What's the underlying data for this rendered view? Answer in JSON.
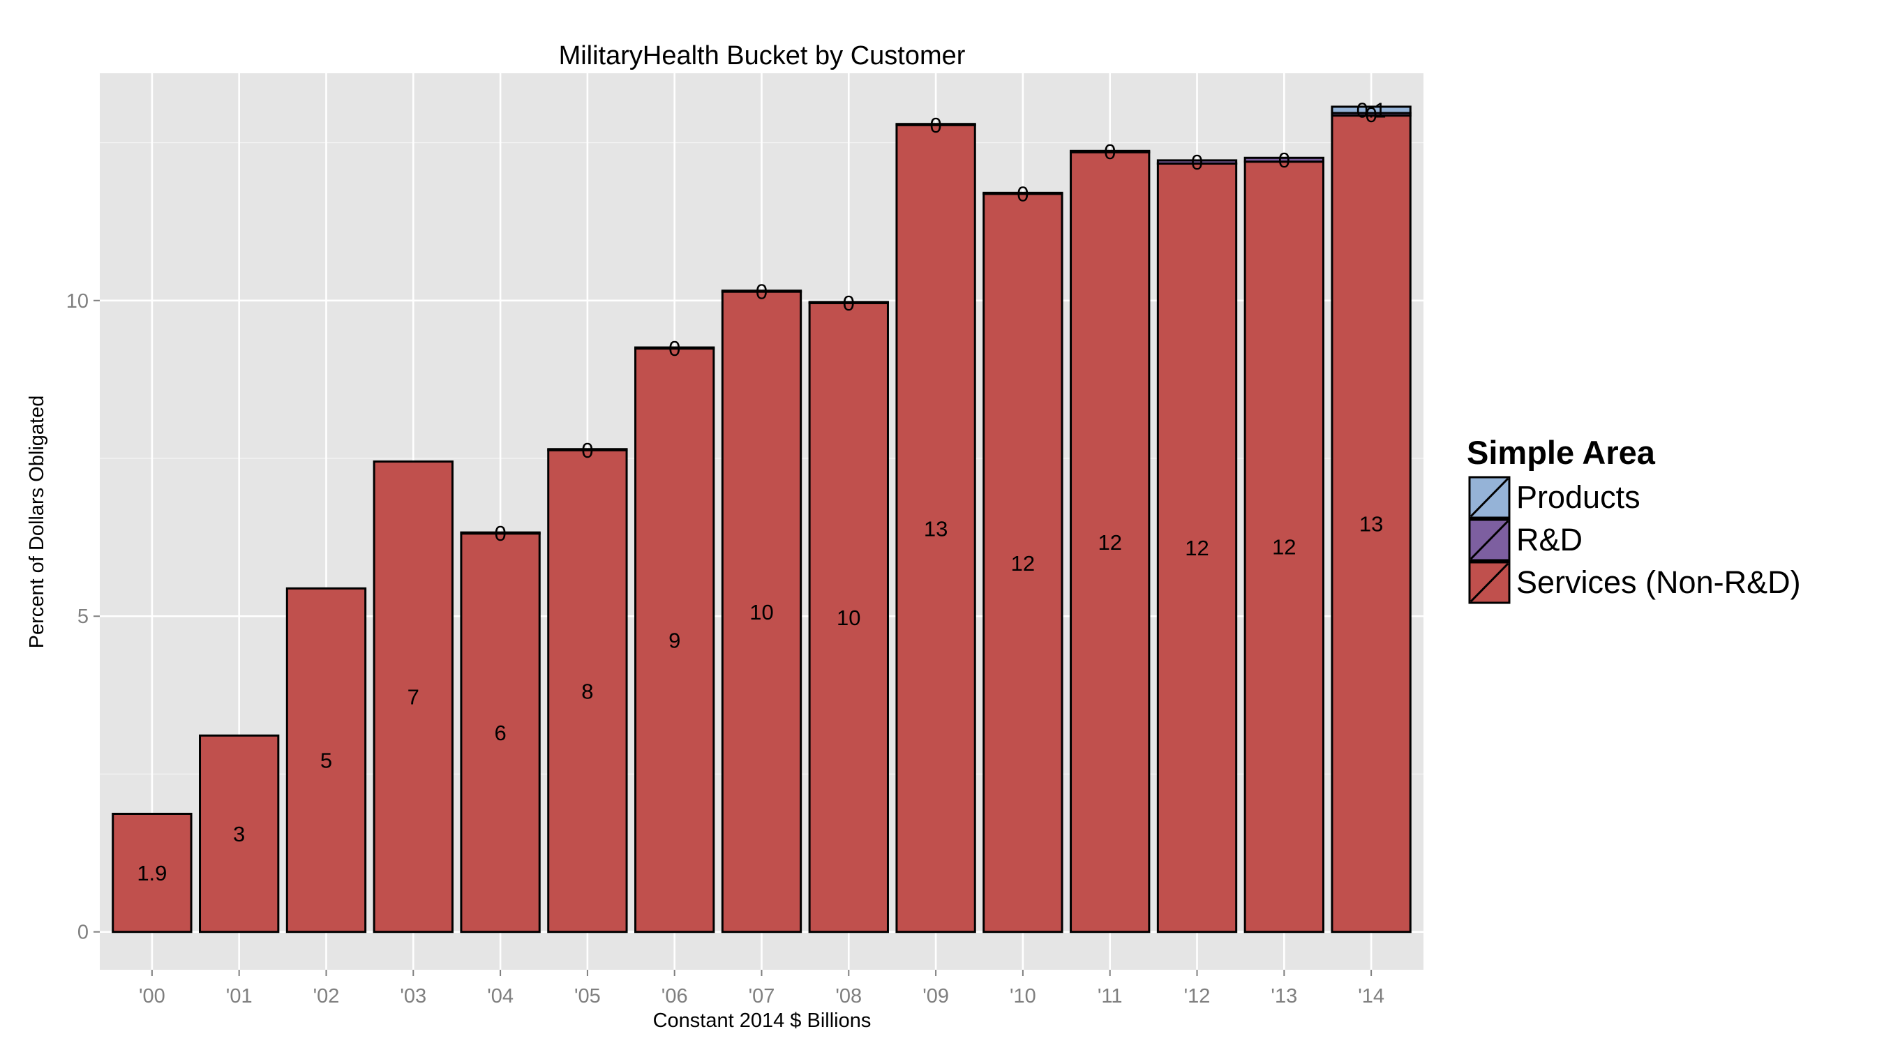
{
  "chart_data": {
    "type": "bar",
    "stacked": true,
    "title": "MilitaryHealth Bucket by Customer",
    "xlabel": "Constant 2014 $ Billions",
    "ylabel": "Percent of Dollars Obligated",
    "ylim": [
      -0.6,
      13.6
    ],
    "yticks": [
      0,
      5,
      10
    ],
    "grid": true,
    "legend_position": "right",
    "legend_title": "Simple Area",
    "categories": [
      "'00",
      "'01",
      "'02",
      "'03",
      "'04",
      "'05",
      "'06",
      "'07",
      "'08",
      "'09",
      "'10",
      "'11",
      "'12",
      "'13",
      "'14"
    ],
    "series": [
      {
        "name": "Services (Non-R&D)",
        "color": "#C0504D",
        "values": [
          1.87,
          3.11,
          5.44,
          7.45,
          6.31,
          7.63,
          9.24,
          10.14,
          9.96,
          12.78,
          11.69,
          12.35,
          12.17,
          12.2,
          12.93
        ],
        "labels": [
          "1.9",
          "3",
          "5",
          "7",
          "6",
          "8",
          "9",
          "10",
          "10",
          "13",
          "12",
          "12",
          "12",
          "12",
          "13"
        ]
      },
      {
        "name": "R&D",
        "color": "#7D5FA0",
        "values": [
          0,
          0,
          0,
          0,
          0.01,
          0.01,
          0.01,
          0.01,
          0.01,
          0.01,
          0.01,
          0.02,
          0.05,
          0.06,
          0.04
        ],
        "labels": [
          "",
          "",
          "",
          "",
          "0",
          "0",
          "0",
          "0",
          "0",
          "0",
          "0",
          "0",
          "0",
          "0",
          "0"
        ]
      },
      {
        "name": "Products",
        "color": "#95B3D7",
        "values": [
          0,
          0,
          0,
          0,
          0,
          0,
          0,
          0,
          0,
          0,
          0,
          0,
          0,
          0,
          0.1
        ],
        "labels": [
          "",
          "",
          "",
          "",
          "",
          "",
          "",
          "",
          "",
          "",
          "",
          "",
          "",
          "",
          "0.1"
        ]
      }
    ],
    "legend_order": [
      "Products",
      "R&D",
      "Services (Non-R&D)"
    ],
    "panel_background": "#E5E5E5",
    "grid_color": "#FFFFFF",
    "bar_outline": "#000000"
  }
}
